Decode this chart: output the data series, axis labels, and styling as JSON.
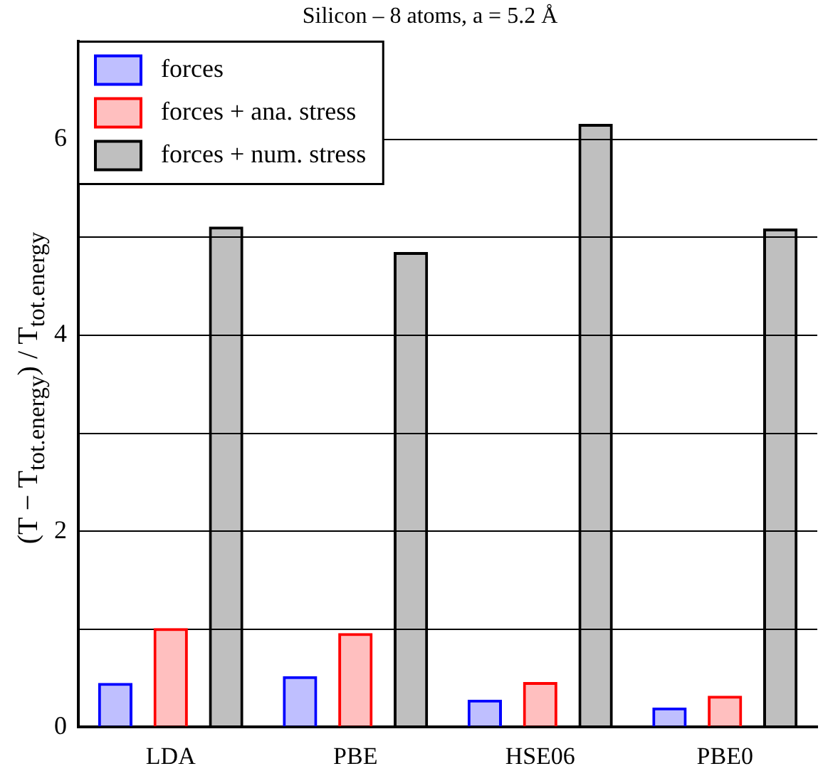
{
  "chart_data": {
    "type": "bar",
    "title": "Silicon – 8 atoms, a = 5.2 Å",
    "ylabel": "(T − T$_{tot.energy}$) / T$_{tot.energy}$",
    "categories": [
      "LDA",
      "PBE",
      "HSE06",
      "PBE0"
    ],
    "series": [
      {
        "name": "forces",
        "color": "#0000ff",
        "values": [
          0.45,
          0.52,
          0.28,
          0.2
        ]
      },
      {
        "name": "forces + ana. stress",
        "color": "#ff0000",
        "values": [
          1.01,
          0.96,
          0.46,
          0.32
        ]
      },
      {
        "name": "forces + num. stress",
        "color": "#000000",
        "values": [
          5.11,
          4.85,
          6.16,
          5.09
        ]
      }
    ],
    "ylim": [
      0,
      7
    ],
    "yticks": [
      0,
      {
        "value": 1,
        "label": null
      },
      2,
      {
        "value": 3,
        "label": null
      },
      4,
      {
        "value": 5,
        "label": null
      },
      6
    ],
    "grid": "y",
    "legend": "top left"
  }
}
